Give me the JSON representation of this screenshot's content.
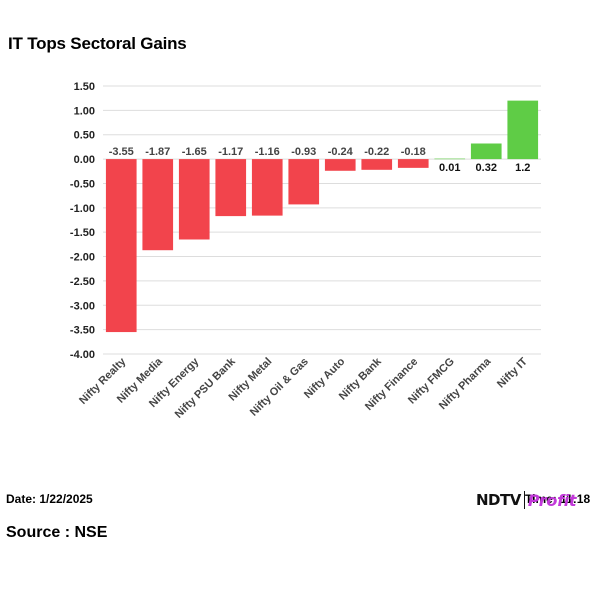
{
  "title": "IT Tops Sectoral Gains",
  "footer": {
    "date": "Date: 1/22/2025",
    "time": "Time: 11:18",
    "source": "Source : NSE",
    "logo_main": "NDTV",
    "logo_sub": "Profit"
  },
  "colors": {
    "negative": "#f2444c",
    "positive": "#5fcc46",
    "grid": "#dddddd",
    "logo_accent": "#c23ad9"
  },
  "chart_data": {
    "type": "bar",
    "title": "IT Tops Sectoral Gains",
    "categories": [
      "Nifty Realty",
      "Nifty Media",
      "Nifty Energy",
      "Nifty PSU Bank",
      "Nifty Metal",
      "Nifty Oil & Gas",
      "Nifty Auto",
      "Nifty Bank",
      "Nifty Finance",
      "Nifty FMCG",
      "Nifty Pharma",
      "Nifty IT"
    ],
    "values": [
      -3.55,
      -1.87,
      -1.65,
      -1.17,
      -1.16,
      -0.93,
      -0.24,
      -0.22,
      -0.18,
      0.01,
      0.32,
      1.2
    ],
    "value_labels": [
      "-3.55",
      "-1.87",
      "-1.65",
      "-1.17",
      "-1.16",
      "-0.93",
      "-0.24",
      "-0.22",
      "-0.18",
      "0.01",
      "0.32",
      "1.2"
    ],
    "ylim": [
      -4.0,
      1.5
    ],
    "yticks": [
      "1.50",
      "1.00",
      "0.50",
      "0.00",
      "-0.50",
      "-1.00",
      "-1.50",
      "-2.00",
      "-2.50",
      "-3.00",
      "-3.50",
      "-4.00"
    ],
    "ytick_values": [
      1.5,
      1.0,
      0.5,
      0.0,
      -0.5,
      -1.0,
      -1.5,
      -2.0,
      -2.5,
      -3.0,
      -3.5,
      -4.0
    ],
    "grid": true,
    "legend": "none"
  }
}
